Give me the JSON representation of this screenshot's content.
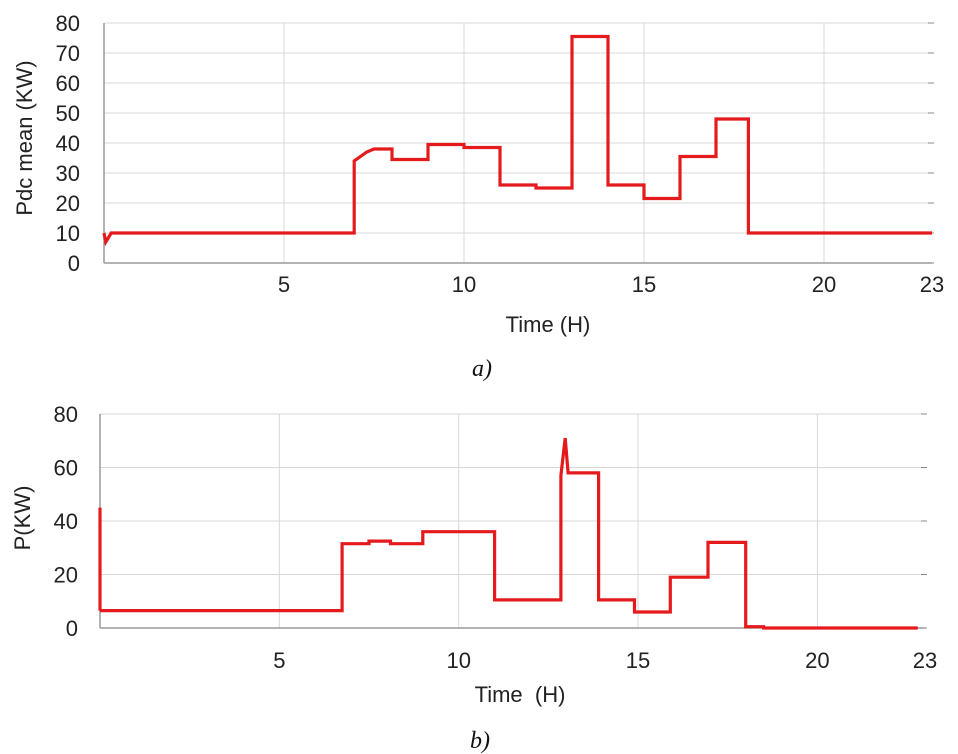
{
  "chart_data": [
    {
      "type": "line",
      "xlabel": "Time (H)",
      "ylabel": "Pdc mean (KW)",
      "caption": "a)",
      "xlim": [
        0,
        23
      ],
      "ylim": [
        0,
        80
      ],
      "xticks": [
        "5",
        "10",
        "15",
        "20",
        "23"
      ],
      "yticks": [
        "0",
        "10",
        "20",
        "30",
        "40",
        "50",
        "60",
        "70",
        "80"
      ],
      "grid": true,
      "color": "#e41a1c",
      "series": [
        {
          "x": [
            0,
            0.05,
            0.2,
            6.95,
            6.95,
            7.3,
            7.5,
            8.0,
            8.0,
            9.0,
            9.0,
            10.0,
            10.0,
            11.0,
            11.0,
            12.0,
            12.0,
            13.0,
            13.0,
            14.0,
            14.0,
            15.0,
            15.0,
            16.0,
            16.0,
            17.0,
            17.0,
            17.9,
            17.9,
            18.1,
            23.0
          ],
          "y": [
            10,
            7,
            10,
            10,
            34,
            37,
            38,
            38,
            34.5,
            34.5,
            39.5,
            39.5,
            38.5,
            38.5,
            26,
            26,
            25,
            25,
            75.5,
            75.5,
            26,
            26,
            21.5,
            21.5,
            35.5,
            35.5,
            48,
            48,
            10,
            10,
            10
          ]
        }
      ]
    },
    {
      "type": "line",
      "xlabel": "Time  (H)",
      "ylabel": "P(KW)",
      "caption": "b)",
      "xlim": [
        0,
        23
      ],
      "ylim": [
        0,
        80
      ],
      "xticks": [
        "5",
        "10",
        "15",
        "20",
        "23"
      ],
      "yticks": [
        "0",
        "20",
        "40",
        "60",
        "80"
      ],
      "grid": true,
      "color": "#e41a1c",
      "series": [
        {
          "x": [
            0,
            6.75,
            6.75,
            7.5,
            7.5,
            8.1,
            8.1,
            9.0,
            9.0,
            11.0,
            11.0,
            12.85,
            12.85,
            12.97,
            13.05,
            13.9,
            13.9,
            14.9,
            14.9,
            15.9,
            15.9,
            16.95,
            16.95,
            18.0,
            18.0,
            18.5,
            18.5,
            22.8
          ],
          "y": [
            6.5,
            6.5,
            31.5,
            31.5,
            32.5,
            32.5,
            31.5,
            31.5,
            36,
            36,
            10.5,
            10.5,
            57,
            71,
            58,
            58,
            10.5,
            10.5,
            6,
            6,
            19,
            19,
            32,
            32,
            0.5,
            0.5,
            0,
            0
          ]
        },
        {
          "x": [
            0,
            0
          ],
          "y": [
            6.5,
            45
          ]
        }
      ]
    }
  ]
}
